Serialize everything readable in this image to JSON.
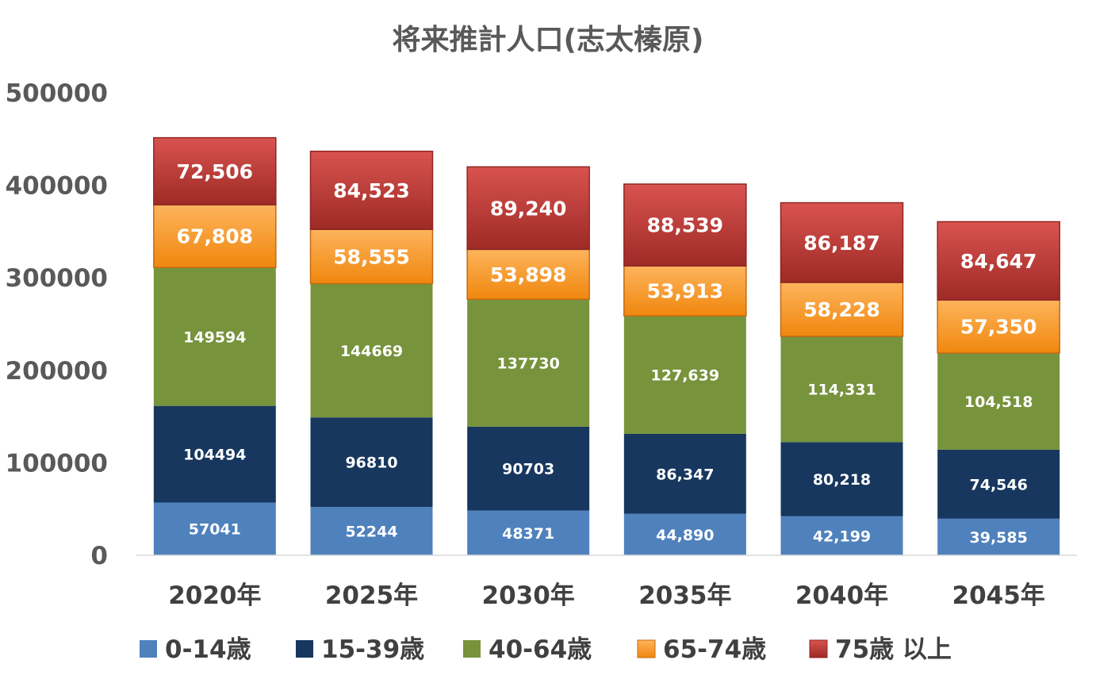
{
  "chart_data": {
    "type": "bar",
    "stacked": true,
    "title": "将来推計人口(志太榛原)",
    "categories": [
      "2020年",
      "2025年",
      "2030年",
      "2035年",
      "2040年",
      "2045年"
    ],
    "ylim": [
      0,
      500000
    ],
    "yticks": [
      "0",
      "100000",
      "200000",
      "300000",
      "400000",
      "500000"
    ],
    "grid": false,
    "legend_position": "bottom",
    "series": [
      {
        "name": "0-14歳",
        "color": "#4F81BD",
        "values": [
          57041,
          52244,
          48371,
          44890,
          42199,
          39585
        ],
        "labels": [
          "57041",
          "52244",
          "48371",
          "44,890",
          "42,199",
          "39,585"
        ]
      },
      {
        "name": "15-39歳",
        "color": "#17375E",
        "values": [
          104494,
          96810,
          90703,
          86347,
          80218,
          74546
        ],
        "labels": [
          "104494",
          "96810",
          "90703",
          "86,347",
          "80,218",
          "74,546"
        ]
      },
      {
        "name": "40-64歳",
        "color": "#77933C",
        "values": [
          149594,
          144669,
          137730,
          127639,
          114331,
          104518
        ],
        "labels": [
          "149594",
          "144669",
          "137730",
          "127,639",
          "114,331",
          "104,518"
        ]
      },
      {
        "name": "65-74歳",
        "color": "#F79646",
        "gradient": [
          "#FDB45C",
          "#F0870E"
        ],
        "values": [
          67808,
          58555,
          53898,
          53913,
          58228,
          57350
        ],
        "labels": [
          "67,808",
          "58,555",
          "53,898",
          "53,913",
          "58,228",
          "57,350"
        ]
      },
      {
        "name": "75歳 以上",
        "color": "#C0504D",
        "gradient": [
          "#D9534F",
          "#9E2A26"
        ],
        "values": [
          72506,
          84523,
          89240,
          88539,
          86187,
          84647
        ],
        "labels": [
          "72,506",
          "84,523",
          "89,240",
          "88,539",
          "86,187",
          "84,647"
        ]
      }
    ]
  }
}
